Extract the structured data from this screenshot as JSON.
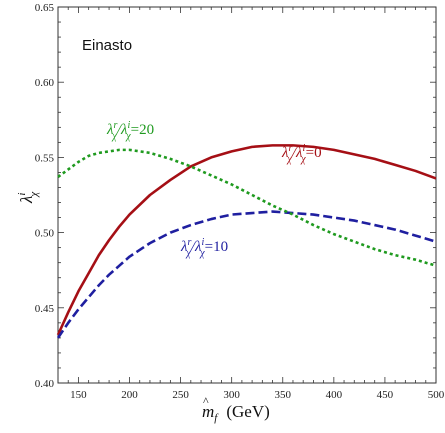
{
  "chart_data": {
    "type": "line",
    "panel_label": "Einasto",
    "xlabel_main": "m",
    "xlabel_sub": "f",
    "xlabel_unit": "(GeV)",
    "ylabel_main": "λ",
    "ylabel_sub": "χ",
    "ylabel_sup": "i",
    "xlim": [
      130,
      500
    ],
    "ylim": [
      0.4,
      0.65
    ],
    "x_ticks": [
      150,
      200,
      250,
      300,
      350,
      400,
      450,
      500
    ],
    "x_tick_labels": [
      "150",
      "200",
      "250",
      "300",
      "350",
      "400",
      "450",
      "500"
    ],
    "y_ticks": [
      0.4,
      0.45,
      0.5,
      0.55,
      0.6,
      0.65
    ],
    "y_tick_labels": [
      "0.40",
      "0.45",
      "0.50",
      "0.55",
      "0.60",
      "0.65"
    ],
    "grid": false,
    "series": [
      {
        "key": "ratio0",
        "label_value": "=0",
        "color": "#a50f15",
        "dash": "solid",
        "x": [
          130,
          140,
          150,
          160,
          170,
          180,
          190,
          200,
          220,
          240,
          260,
          280,
          300,
          320,
          340,
          360,
          380,
          400,
          420,
          440,
          460,
          480,
          500
        ],
        "y": [
          0.432,
          0.447,
          0.461,
          0.473,
          0.485,
          0.495,
          0.504,
          0.512,
          0.525,
          0.535,
          0.544,
          0.55,
          0.554,
          0.557,
          0.558,
          0.558,
          0.557,
          0.555,
          0.552,
          0.549,
          0.545,
          0.541,
          0.536
        ]
      },
      {
        "key": "ratio10",
        "label_value": "=10",
        "color": "#1f1fa0",
        "dash": "dashed",
        "x": [
          130,
          140,
          150,
          160,
          170,
          180,
          190,
          200,
          220,
          240,
          260,
          280,
          300,
          320,
          340,
          360,
          380,
          400,
          420,
          440,
          460,
          480,
          500
        ],
        "y": [
          0.43,
          0.44,
          0.449,
          0.457,
          0.465,
          0.472,
          0.478,
          0.484,
          0.493,
          0.5,
          0.505,
          0.509,
          0.512,
          0.513,
          0.514,
          0.513,
          0.512,
          0.51,
          0.508,
          0.505,
          0.502,
          0.498,
          0.494
        ]
      },
      {
        "key": "ratio20",
        "label_value": "=20",
        "color": "#1f9a1f",
        "dash": "dotted",
        "x": [
          130,
          140,
          150,
          160,
          170,
          180,
          190,
          200,
          220,
          240,
          260,
          280,
          300,
          320,
          340,
          360,
          380,
          400,
          420,
          440,
          460,
          480,
          500
        ],
        "y": [
          0.537,
          0.542,
          0.547,
          0.551,
          0.553,
          0.554,
          0.555,
          0.555,
          0.553,
          0.549,
          0.544,
          0.538,
          0.532,
          0.525,
          0.518,
          0.512,
          0.505,
          0.499,
          0.494,
          0.489,
          0.485,
          0.482,
          0.478
        ]
      }
    ]
  }
}
